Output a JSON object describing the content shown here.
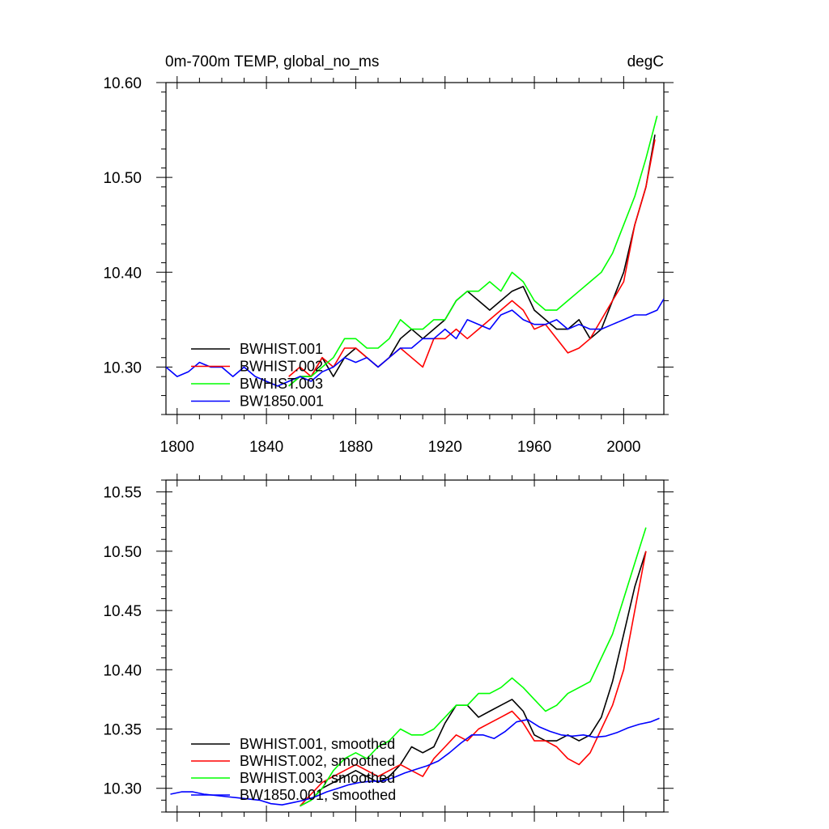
{
  "chart_data": [
    {
      "type": "line",
      "title": "0m-700m TEMP, global_no_ms",
      "units": "degC",
      "xlim": [
        1795,
        2018
      ],
      "ylim": [
        10.25,
        10.6
      ],
      "xticks": [
        1800,
        1840,
        1880,
        1920,
        1960,
        2000
      ],
      "xtick_labels": [
        "1800",
        "1840",
        "1880",
        "1920",
        "1960",
        "2000"
      ],
      "yticks": [
        10.3,
        10.4,
        10.5,
        10.6
      ],
      "ytick_labels": [
        "10.30",
        "10.40",
        "10.50",
        "10.60"
      ],
      "legend_position": "bottom-left",
      "series": [
        {
          "name": "BWHIST.001",
          "color": "#000000",
          "x": [
            1850,
            1855,
            1860,
            1865,
            1870,
            1875,
            1880,
            1885,
            1890,
            1895,
            1900,
            1905,
            1910,
            1915,
            1920,
            1925,
            1930,
            1935,
            1940,
            1945,
            1950,
            1955,
            1960,
            1965,
            1970,
            1975,
            1980,
            1985,
            1990,
            1995,
            2000,
            2005,
            2010,
            2014
          ],
          "y": [
            10.28,
            10.29,
            10.29,
            10.31,
            10.29,
            10.31,
            10.32,
            10.31,
            10.3,
            10.31,
            10.33,
            10.34,
            10.33,
            10.34,
            10.35,
            10.37,
            10.38,
            10.37,
            10.36,
            10.37,
            10.38,
            10.385,
            10.36,
            10.35,
            10.34,
            10.34,
            10.35,
            10.33,
            10.34,
            10.37,
            10.4,
            10.45,
            10.49,
            10.545
          ]
        },
        {
          "name": "BWHIST.002",
          "color": "#ff0000",
          "x": [
            1850,
            1855,
            1860,
            1865,
            1870,
            1875,
            1880,
            1885,
            1890,
            1895,
            1900,
            1905,
            1910,
            1915,
            1920,
            1925,
            1930,
            1935,
            1940,
            1945,
            1950,
            1955,
            1960,
            1965,
            1970,
            1975,
            1980,
            1985,
            1990,
            1995,
            2000,
            2005,
            2010,
            2014
          ],
          "y": [
            10.29,
            10.3,
            10.29,
            10.31,
            10.3,
            10.32,
            10.32,
            10.31,
            10.3,
            10.31,
            10.32,
            10.31,
            10.3,
            10.33,
            10.33,
            10.34,
            10.33,
            10.34,
            10.35,
            10.36,
            10.37,
            10.36,
            10.34,
            10.345,
            10.33,
            10.315,
            10.32,
            10.33,
            10.35,
            10.37,
            10.39,
            10.45,
            10.49,
            10.54
          ]
        },
        {
          "name": "BWHIST.003",
          "color": "#00ff00",
          "x": [
            1850,
            1855,
            1860,
            1865,
            1870,
            1875,
            1880,
            1885,
            1890,
            1895,
            1900,
            1905,
            1910,
            1915,
            1920,
            1925,
            1930,
            1935,
            1940,
            1945,
            1950,
            1955,
            1960,
            1965,
            1970,
            1975,
            1980,
            1985,
            1990,
            1995,
            2000,
            2005,
            2010,
            2015
          ],
          "y": [
            10.28,
            10.29,
            10.29,
            10.3,
            10.31,
            10.33,
            10.33,
            10.32,
            10.32,
            10.33,
            10.35,
            10.34,
            10.34,
            10.35,
            10.35,
            10.37,
            10.38,
            10.38,
            10.39,
            10.38,
            10.4,
            10.39,
            10.37,
            10.36,
            10.36,
            10.37,
            10.38,
            10.39,
            10.4,
            10.42,
            10.45,
            10.48,
            10.52,
            10.565
          ]
        },
        {
          "name": "BW1850.001",
          "color": "#0000ff",
          "x": [
            1795,
            1800,
            1805,
            1810,
            1815,
            1820,
            1825,
            1830,
            1835,
            1840,
            1845,
            1850,
            1855,
            1860,
            1865,
            1870,
            1875,
            1880,
            1885,
            1890,
            1895,
            1900,
            1905,
            1910,
            1915,
            1920,
            1925,
            1930,
            1935,
            1940,
            1945,
            1950,
            1955,
            1960,
            1965,
            1970,
            1975,
            1980,
            1985,
            1990,
            1995,
            2000,
            2005,
            2010,
            2015,
            2018
          ],
          "y": [
            10.3,
            10.29,
            10.295,
            10.305,
            10.3,
            10.3,
            10.29,
            10.3,
            10.29,
            10.285,
            10.28,
            10.285,
            10.29,
            10.285,
            10.295,
            10.3,
            10.31,
            10.305,
            10.31,
            10.3,
            10.31,
            10.32,
            10.32,
            10.33,
            10.33,
            10.34,
            10.33,
            10.35,
            10.345,
            10.34,
            10.355,
            10.36,
            10.35,
            10.345,
            10.345,
            10.35,
            10.34,
            10.345,
            10.34,
            10.34,
            10.345,
            10.35,
            10.355,
            10.355,
            10.36,
            10.372
          ]
        }
      ]
    },
    {
      "type": "line",
      "title": "",
      "xlim": [
        1795,
        2018
      ],
      "ylim": [
        10.28,
        10.56
      ],
      "xticks": [
        1800,
        1840,
        1880,
        1920,
        1960,
        2000
      ],
      "yticks": [
        10.3,
        10.35,
        10.4,
        10.45,
        10.5,
        10.55
      ],
      "ytick_labels": [
        "10.30",
        "10.35",
        "10.40",
        "10.45",
        "10.50",
        "10.55"
      ],
      "legend_position": "bottom-left",
      "series": [
        {
          "name": "BWHIST.001, smoothed",
          "color": "#000000",
          "x": [
            1855,
            1860,
            1865,
            1870,
            1875,
            1880,
            1885,
            1890,
            1895,
            1900,
            1905,
            1910,
            1915,
            1920,
            1925,
            1930,
            1935,
            1940,
            1945,
            1950,
            1955,
            1960,
            1965,
            1970,
            1975,
            1980,
            1985,
            1990,
            1995,
            2000,
            2005,
            2010
          ],
          "y": [
            10.285,
            10.29,
            10.3,
            10.305,
            10.31,
            10.315,
            10.31,
            10.305,
            10.31,
            10.32,
            10.335,
            10.33,
            10.335,
            10.355,
            10.37,
            10.37,
            10.36,
            10.365,
            10.37,
            10.375,
            10.365,
            10.345,
            10.34,
            10.34,
            10.345,
            10.34,
            10.345,
            10.36,
            10.39,
            10.43,
            10.47,
            10.5
          ]
        },
        {
          "name": "BWHIST.002, smoothed",
          "color": "#ff0000",
          "x": [
            1855,
            1860,
            1865,
            1870,
            1875,
            1880,
            1885,
            1890,
            1895,
            1900,
            1905,
            1910,
            1915,
            1920,
            1925,
            1930,
            1935,
            1940,
            1945,
            1950,
            1955,
            1960,
            1965,
            1970,
            1975,
            1980,
            1985,
            1990,
            1995,
            2000,
            2005,
            2010
          ],
          "y": [
            10.285,
            10.295,
            10.305,
            10.31,
            10.315,
            10.32,
            10.315,
            10.31,
            10.315,
            10.32,
            10.315,
            10.31,
            10.325,
            10.335,
            10.345,
            10.34,
            10.35,
            10.355,
            10.36,
            10.365,
            10.355,
            10.34,
            10.34,
            10.335,
            10.325,
            10.32,
            10.33,
            10.35,
            10.37,
            10.4,
            10.45,
            10.5
          ]
        },
        {
          "name": "BWHIST.003, smoothed",
          "color": "#00ff00",
          "x": [
            1855,
            1860,
            1865,
            1870,
            1875,
            1880,
            1885,
            1890,
            1895,
            1900,
            1905,
            1910,
            1915,
            1920,
            1925,
            1930,
            1935,
            1940,
            1945,
            1950,
            1955,
            1960,
            1965,
            1970,
            1975,
            1980,
            1985,
            1990,
            1995,
            2000,
            2005,
            2010
          ],
          "y": [
            10.285,
            10.29,
            10.3,
            10.315,
            10.325,
            10.33,
            10.325,
            10.335,
            10.34,
            10.35,
            10.345,
            10.345,
            10.35,
            10.36,
            10.37,
            10.37,
            10.38,
            10.38,
            10.385,
            10.393,
            10.385,
            10.375,
            10.365,
            10.37,
            10.38,
            10.385,
            10.39,
            10.41,
            10.43,
            10.46,
            10.49,
            10.52
          ]
        },
        {
          "name": "BW1850.001, smoothed",
          "color": "#0000ff",
          "x": [
            1797,
            1802,
            1807,
            1812,
            1817,
            1822,
            1827,
            1832,
            1837,
            1842,
            1847,
            1852,
            1857,
            1862,
            1867,
            1872,
            1877,
            1882,
            1887,
            1892,
            1897,
            1902,
            1907,
            1912,
            1917,
            1922,
            1927,
            1932,
            1937,
            1942,
            1947,
            1952,
            1957,
            1962,
            1967,
            1972,
            1977,
            1982,
            1987,
            1992,
            1997,
            2002,
            2007,
            2012,
            2016
          ],
          "y": [
            10.295,
            10.297,
            10.297,
            10.295,
            10.294,
            10.293,
            10.292,
            10.291,
            10.29,
            10.287,
            10.286,
            10.288,
            10.29,
            10.293,
            10.297,
            10.3,
            10.303,
            10.305,
            10.306,
            10.306,
            10.309,
            10.313,
            10.316,
            10.319,
            10.323,
            10.33,
            10.338,
            10.345,
            10.345,
            10.342,
            10.348,
            10.356,
            10.358,
            10.352,
            10.348,
            10.345,
            10.344,
            10.345,
            10.343,
            10.344,
            10.347,
            10.351,
            10.354,
            10.356,
            10.359
          ]
        }
      ]
    }
  ]
}
